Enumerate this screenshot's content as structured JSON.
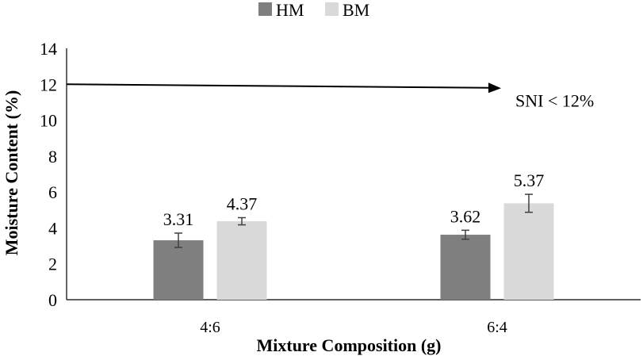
{
  "chart_data": {
    "type": "bar",
    "categories": [
      "4:6",
      "6:4"
    ],
    "series": [
      {
        "name": "HM",
        "color": "#7f7f7f",
        "values": [
          3.31,
          3.62
        ],
        "errors": [
          0.4,
          0.25
        ],
        "labels": [
          "3.31",
          "3.62"
        ]
      },
      {
        "name": "BM",
        "color": "#d9d9d9",
        "values": [
          4.37,
          5.37
        ],
        "errors": [
          0.2,
          0.5
        ],
        "labels": [
          "4.37",
          "5.37"
        ]
      }
    ],
    "xlabel": "Mixture Composition (g)",
    "ylabel": "Moisture Content (%)",
    "ylim": [
      0,
      14
    ],
    "yticks": [
      "0",
      "2",
      "4",
      "6",
      "8",
      "10",
      "12",
      "14"
    ],
    "legend_position": "top-center",
    "grid": false,
    "annotation": {
      "text": "SNI < 12%",
      "y_value": 12
    }
  }
}
